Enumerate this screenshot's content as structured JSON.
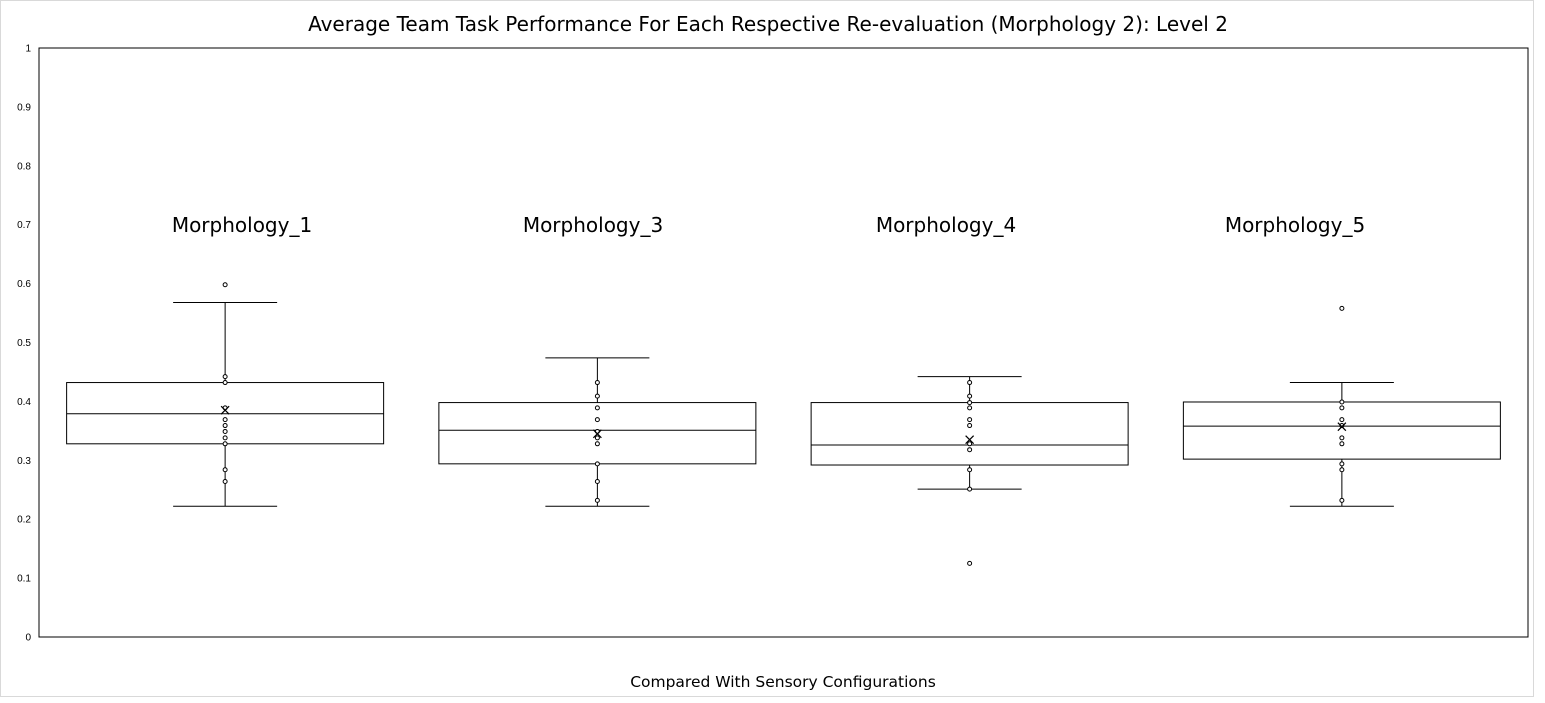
{
  "chart_data": {
    "type": "box",
    "title": "Average Team Task Performance For Each Respective Re-evaluation (Morphology 2):  Level 2",
    "xlabel": "Compared With Sensory Configurations",
    "ylabel": "",
    "ylim": [
      0,
      1
    ],
    "yticks": [
      "0",
      "0.1",
      "0.2",
      "0.3",
      "0.4",
      "0.5",
      "0.6",
      "0.7",
      "0.8",
      "0.9",
      "1"
    ],
    "grid": false,
    "series": [
      {
        "label": "Morphology_1",
        "whisker_low": 0.222,
        "q1": 0.328,
        "median": 0.379,
        "q3": 0.432,
        "whisker_high": 0.568,
        "mean": 0.385,
        "points": [
          0.264,
          0.284,
          0.328,
          0.338,
          0.349,
          0.359,
          0.369,
          0.389,
          0.432,
          0.442
        ],
        "outliers": [
          0.598
        ]
      },
      {
        "label": "Morphology_3",
        "whisker_low": 0.222,
        "q1": 0.294,
        "median": 0.351,
        "q3": 0.398,
        "whisker_high": 0.474,
        "mean": 0.345,
        "points": [
          0.232,
          0.264,
          0.294,
          0.328,
          0.338,
          0.349,
          0.369,
          0.389,
          0.409,
          0.432
        ],
        "outliers": []
      },
      {
        "label": "Morphology_4",
        "whisker_low": 0.251,
        "q1": 0.292,
        "median": 0.326,
        "q3": 0.398,
        "whisker_high": 0.442,
        "mean": 0.335,
        "points": [
          0.251,
          0.284,
          0.318,
          0.328,
          0.359,
          0.369,
          0.389,
          0.398,
          0.409,
          0.432
        ],
        "outliers": [
          0.125
        ]
      },
      {
        "label": "Morphology_5",
        "whisker_low": 0.222,
        "q1": 0.302,
        "median": 0.358,
        "q3": 0.399,
        "whisker_high": 0.432,
        "mean": 0.357,
        "points": [
          0.232,
          0.284,
          0.294,
          0.328,
          0.338,
          0.359,
          0.369,
          0.389,
          0.399
        ],
        "outliers": [
          0.558
        ]
      }
    ]
  }
}
